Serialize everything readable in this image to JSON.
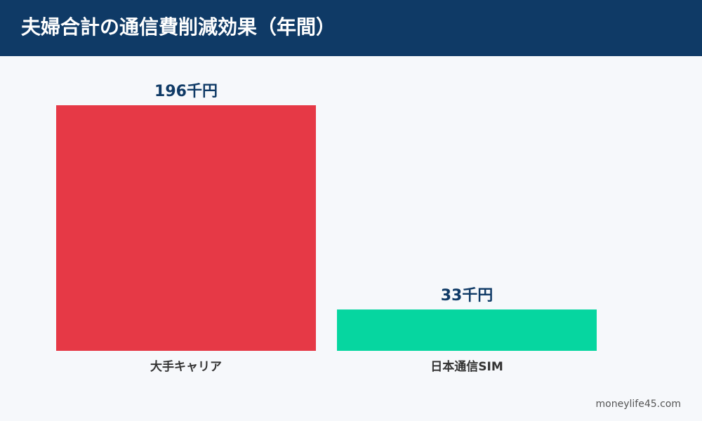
{
  "chart_data": {
    "type": "bar",
    "title": "夫婦合計の通信費削減効果（年間）",
    "categories": [
      "大手キャリア",
      "日本通信SIM"
    ],
    "values": [
      196,
      33
    ],
    "value_labels": [
      "196千円",
      "33千円"
    ],
    "colors": [
      "#e63946",
      "#06d6a0"
    ],
    "source": "moneylife45.com"
  }
}
